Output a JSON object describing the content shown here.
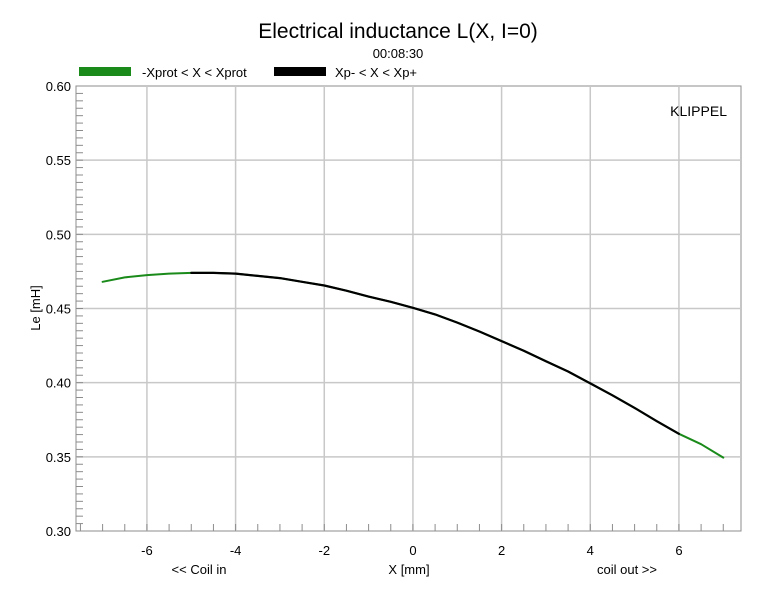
{
  "chart_data": {
    "type": "line",
    "title": "Electrical inductance L(X, I=0)",
    "subtitle": "00:08:30",
    "watermark": "KLIPPEL",
    "xlabel": "X [mm]",
    "ylabel": "Le [mH]",
    "x_annotations": {
      "left": "<< Coil in",
      "right": "coil out >>"
    },
    "xlim": [
      -7.6,
      7.4
    ],
    "ylim": [
      0.3,
      0.6
    ],
    "x_ticks": [
      -6,
      -4,
      -2,
      0,
      2,
      4,
      6
    ],
    "x_tick_labels": [
      "-6",
      "-4",
      "-2",
      "0",
      "2",
      "4",
      "6"
    ],
    "y_ticks": [
      0.3,
      0.35,
      0.4,
      0.45,
      0.5,
      0.55,
      0.6
    ],
    "y_tick_labels": [
      "0.30",
      "0.35",
      "0.40",
      "0.45",
      "0.50",
      "0.55",
      "0.60"
    ],
    "grid": true,
    "legend_position": "top",
    "series": [
      {
        "name": "-Xprot < X < Xprot",
        "color": "#1a8a1a",
        "x": [
          -7.0,
          -6.5,
          -6.0,
          -5.5,
          -5.0,
          -4.5,
          -4.0,
          -3.5,
          -3.0,
          -2.5,
          -2.0,
          -1.5,
          -1.0,
          -0.5,
          0.0,
          0.5,
          1.0,
          1.5,
          2.0,
          2.5,
          3.0,
          3.5,
          4.0,
          4.5,
          5.0,
          5.5,
          6.0,
          6.5,
          7.0
        ],
        "y": [
          0.468,
          0.471,
          0.4725,
          0.4735,
          0.474,
          0.474,
          0.4735,
          0.472,
          0.4705,
          0.468,
          0.4655,
          0.462,
          0.458,
          0.4545,
          0.4505,
          0.446,
          0.4405,
          0.4345,
          0.428,
          0.4215,
          0.4145,
          0.4075,
          0.3995,
          0.3915,
          0.383,
          0.374,
          0.3655,
          0.3585,
          0.3495
        ]
      },
      {
        "name": "Xp- < X < Xp+",
        "color": "#000000",
        "x": [
          -5.0,
          -4.5,
          -4.0,
          -3.5,
          -3.0,
          -2.5,
          -2.0,
          -1.5,
          -1.0,
          -0.5,
          0.0,
          0.5,
          1.0,
          1.5,
          2.0,
          2.5,
          3.0,
          3.5,
          4.0,
          4.5,
          5.0,
          5.5,
          6.0
        ],
        "y": [
          0.474,
          0.474,
          0.4735,
          0.472,
          0.4705,
          0.468,
          0.4655,
          0.462,
          0.458,
          0.4545,
          0.4505,
          0.446,
          0.4405,
          0.4345,
          0.428,
          0.4215,
          0.4145,
          0.4075,
          0.3995,
          0.3915,
          0.383,
          0.374,
          0.3655
        ]
      }
    ]
  }
}
